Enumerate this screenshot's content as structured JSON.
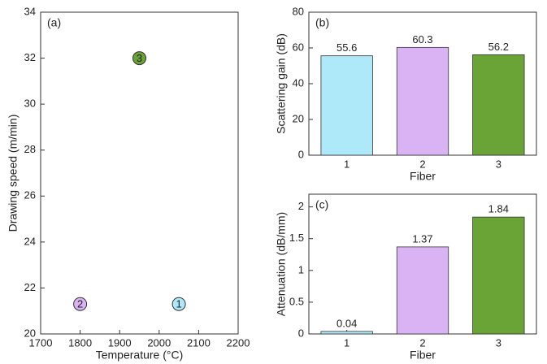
{
  "chart_data": [
    {
      "type": "scatter",
      "title": "(a)",
      "x_label": "Temperature (°C)",
      "y_label": "Drawing speed (m/min)",
      "x": [
        2050,
        1800,
        1950
      ],
      "values": [
        21.3,
        21.3,
        32
      ],
      "labels": [
        "1",
        "2",
        "3"
      ],
      "colors": [
        "#aee9f9",
        "#d9b3f3",
        "#6aa336"
      ],
      "xlim": [
        1700,
        2200
      ],
      "xticks": [
        1700,
        1800,
        1900,
        2000,
        2100,
        2200
      ],
      "ylim": [
        20,
        34
      ],
      "yticks": [
        20,
        22,
        24,
        26,
        28,
        30,
        32,
        34
      ],
      "grid": false
    },
    {
      "type": "bar",
      "title": "(b)",
      "x_label": "Fiber",
      "y_label": "Scattering gain (dB)",
      "categories": [
        "1",
        "2",
        "3"
      ],
      "values": [
        55.6,
        60.3,
        56.2
      ],
      "colors": [
        "#aee9f9",
        "#d9b3f3",
        "#6aa336"
      ],
      "ylim": [
        0,
        80
      ],
      "yticks": [
        0,
        20,
        40,
        60,
        80
      ],
      "grid": false
    },
    {
      "type": "bar",
      "title": "(c)",
      "x_label": "Fiber",
      "y_label": "Attenuation (dB/mm)",
      "categories": [
        "1",
        "2",
        "3"
      ],
      "values": [
        0.04,
        1.37,
        1.84
      ],
      "colors": [
        "#aee9f9",
        "#d9b3f3",
        "#6aa336"
      ],
      "ylim": [
        0,
        2.2
      ],
      "yticks": [
        0,
        0.5,
        1,
        1.5,
        2
      ],
      "grid": false
    }
  ]
}
